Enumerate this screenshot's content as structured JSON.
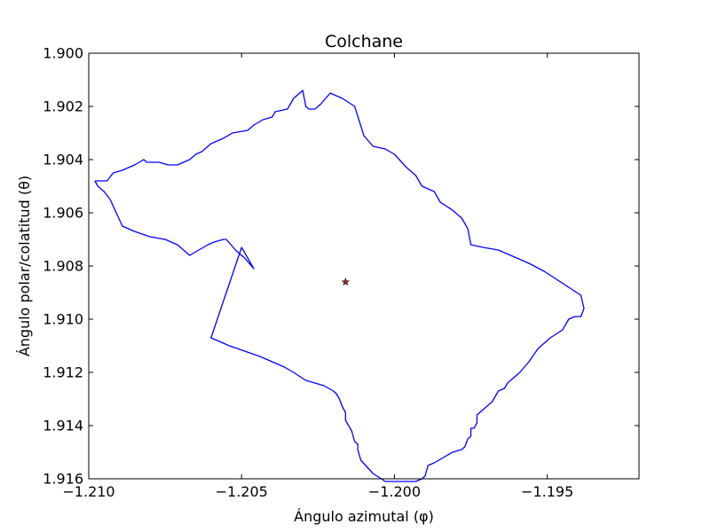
{
  "chart_data": {
    "type": "line",
    "title": "Colchane",
    "xlabel": "Ángulo azimutal (φ)",
    "ylabel": "Ángulo polar/colatitud (θ)",
    "xlim": [
      -1.21,
      -1.192
    ],
    "ylim": [
      1.9,
      1.916
    ],
    "y_inverted": true,
    "grid": false,
    "x_ticks": [
      {
        "value": -1.21,
        "label": "−1.210"
      },
      {
        "value": -1.205,
        "label": "−1.205"
      },
      {
        "value": -1.2,
        "label": "−1.200"
      },
      {
        "value": -1.195,
        "label": "−1.195"
      }
    ],
    "y_ticks": [
      {
        "value": 1.9,
        "label": "1.900"
      },
      {
        "value": 1.902,
        "label": "1.902"
      },
      {
        "value": 1.904,
        "label": "1.904"
      },
      {
        "value": 1.906,
        "label": "1.906"
      },
      {
        "value": 1.908,
        "label": "1.908"
      },
      {
        "value": 1.91,
        "label": "1.910"
      },
      {
        "value": 1.912,
        "label": "1.912"
      },
      {
        "value": 1.914,
        "label": "1.914"
      },
      {
        "value": 1.916,
        "label": "1.916"
      }
    ],
    "series": [
      {
        "color": "#0000ff",
        "x": [
          -1.2098,
          -1.2094,
          -1.2092,
          -1.2089,
          -1.2085,
          -1.2082,
          -1.2081,
          -1.2079,
          -1.2077,
          -1.2074,
          -1.2071,
          -1.2067,
          -1.2065,
          -1.2063,
          -1.2061,
          -1.206,
          -1.2056,
          -1.2053,
          -1.2048,
          -1.2046,
          -1.2043,
          -1.204,
          -1.2039,
          -1.2035,
          -1.2033,
          -1.203,
          -1.2029,
          -1.2028,
          -1.2026,
          -1.2024,
          -1.2021,
          -1.2017,
          -1.2013,
          -1.201,
          -1.2007,
          -1.2003,
          -1.2,
          -1.1996,
          -1.1993,
          -1.1991,
          -1.1987,
          -1.1985,
          -1.1981,
          -1.1978,
          -1.1976,
          -1.1975,
          -1.1971,
          -1.1966,
          -1.1962,
          -1.1956,
          -1.1951,
          -1.1947,
          -1.1943,
          -1.1939,
          -1.1938,
          -1.1939,
          -1.1941,
          -1.1943,
          -1.1945,
          -1.1949,
          -1.1953,
          -1.1956,
          -1.1959,
          -1.1961,
          -1.1963,
          -1.1964,
          -1.1966,
          -1.1968,
          -1.1971,
          -1.1973,
          -1.1973,
          -1.1974,
          -1.1975,
          -1.1975,
          -1.1976,
          -1.1977,
          -1.1978,
          -1.1981,
          -1.1984,
          -1.1987,
          -1.1989,
          -1.199,
          -1.1991,
          -1.1993,
          -1.1995,
          -1.1998,
          -1.2,
          -1.2003,
          -1.2007,
          -1.2011,
          -1.2012,
          -1.2012,
          -1.2013,
          -1.2014,
          -1.2016,
          -1.2016,
          -1.2017,
          -1.2018,
          -1.2019,
          -1.202,
          -1.2023,
          -1.2026,
          -1.2029,
          -1.2033,
          -1.2036,
          -1.204,
          -1.2044,
          -1.2049,
          -1.2054,
          -1.206,
          -1.2055,
          -1.205,
          -1.2046,
          -1.2049,
          -1.2052,
          -1.2055,
          -1.2056,
          -1.2059,
          -1.2061,
          -1.2064,
          -1.2067,
          -1.2071,
          -1.2075,
          -1.208,
          -1.2085,
          -1.2089,
          -1.2091,
          -1.2093,
          -1.2095,
          -1.2097,
          -1.2098
        ],
        "y": [
          1.9048,
          1.9048,
          1.9045,
          1.9044,
          1.9042,
          1.904,
          1.9041,
          1.9041,
          1.9041,
          1.9042,
          1.9042,
          1.904,
          1.9038,
          1.9037,
          1.9035,
          1.9034,
          1.9032,
          1.903,
          1.9029,
          1.9027,
          1.9025,
          1.9024,
          1.9022,
          1.9021,
          1.9017,
          1.9014,
          1.902,
          1.9021,
          1.9021,
          1.9019,
          1.9015,
          1.9017,
          1.902,
          1.9031,
          1.9035,
          1.9036,
          1.9038,
          1.9043,
          1.9046,
          1.905,
          1.9052,
          1.9056,
          1.9059,
          1.9062,
          1.9066,
          1.9072,
          1.9073,
          1.9074,
          1.9076,
          1.9079,
          1.9082,
          1.9085,
          1.9088,
          1.9091,
          1.9096,
          1.9099,
          1.9099,
          1.91,
          1.9104,
          1.9107,
          1.9111,
          1.9116,
          1.912,
          1.9122,
          1.9124,
          1.9126,
          1.9127,
          1.9131,
          1.9134,
          1.9136,
          1.9139,
          1.9141,
          1.9141,
          1.9144,
          1.9145,
          1.9148,
          1.9149,
          1.915,
          1.9152,
          1.9154,
          1.9155,
          1.9159,
          1.916,
          1.9161,
          1.9161,
          1.9161,
          1.9161,
          1.9161,
          1.9158,
          1.9153,
          1.9149,
          1.9147,
          1.9146,
          1.9142,
          1.9138,
          1.9135,
          1.9133,
          1.913,
          1.9128,
          1.9127,
          1.9125,
          1.9124,
          1.9123,
          1.912,
          1.9118,
          1.9116,
          1.9114,
          1.9112,
          1.911,
          1.9107,
          1.909,
          1.9073,
          1.9081,
          1.9077,
          1.9074,
          1.907,
          1.907,
          1.9071,
          1.9072,
          1.9074,
          1.9076,
          1.9072,
          1.907,
          1.9069,
          1.9067,
          1.9065,
          1.906,
          1.9055,
          1.9052,
          1.905,
          1.9048
        ]
      }
    ],
    "marker": {
      "x": -1.2016,
      "y": 1.9086,
      "symbol": "star",
      "color": "#b22222"
    }
  }
}
